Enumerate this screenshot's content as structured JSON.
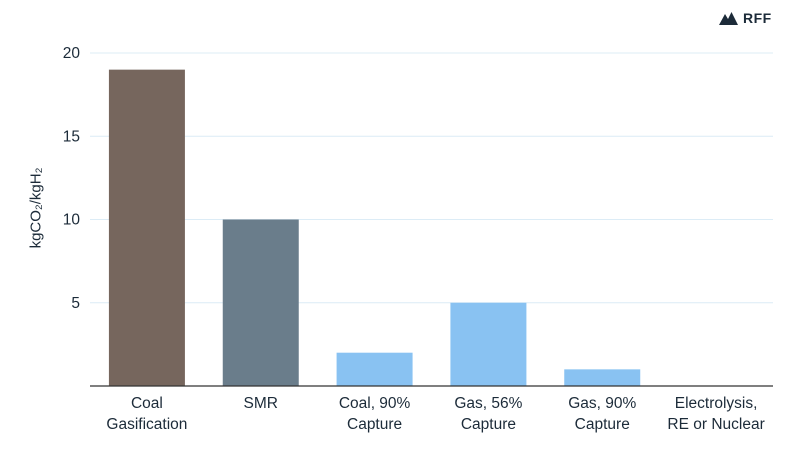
{
  "brand": {
    "logo_text": "RFF"
  },
  "chart_data": {
    "type": "bar",
    "categories": [
      [
        "Coal",
        "Gasification"
      ],
      [
        "SMR"
      ],
      [
        "Coal, 90%",
        "Capture"
      ],
      [
        "Gas, 56%",
        "Capture"
      ],
      [
        "Gas, 90%",
        "Capture"
      ],
      [
        "Electrolysis,",
        "RE or Nuclear"
      ]
    ],
    "values": [
      19,
      10,
      2,
      5,
      1,
      0
    ],
    "bar_colors": [
      "#76665d",
      "#6a7d8b",
      "#89c2f2",
      "#89c2f2",
      "#89c2f2",
      "#89c2f2"
    ],
    "ylabel": "kgCO₂/kgH₂",
    "ylim": [
      0,
      20
    ],
    "yticks": [
      "5",
      "10",
      "15",
      "20"
    ],
    "grid": true,
    "gridline_color": "#dcecf6",
    "axis_color": "#333333"
  }
}
